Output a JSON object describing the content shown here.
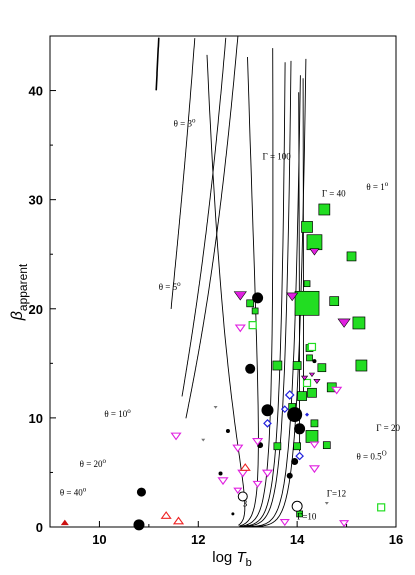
{
  "chart_data": {
    "type": "scatter",
    "x_axis": {
      "label_main": "log",
      "label_var": "T",
      "label_sub": "b",
      "range": [
        9,
        16
      ],
      "ticks": [
        "10",
        "12",
        "14",
        "16"
      ]
    },
    "y_axis": {
      "label_var": "β",
      "label_sub": "apparent",
      "range": [
        0,
        45
      ],
      "ticks": [
        "0",
        "10",
        "20",
        "30",
        "40"
      ]
    },
    "curve_labels": [
      {
        "text": "Γ = 100",
        "x": 13.3,
        "y": 33.7
      },
      {
        "text": "Γ = 40",
        "x": 14.5,
        "y": 30.3
      },
      {
        "text": "Γ = 20",
        "x": 15.6,
        "y": 8.8
      },
      {
        "text": "Γ=12",
        "x": 14.6,
        "y": 2.8
      },
      {
        "text": "Γ=10",
        "x": 14.0,
        "y": 0.7
      },
      {
        "text": "θ = 3",
        "sup": "o",
        "x": 11.5,
        "y": 36.7
      },
      {
        "text": "θ = 1",
        "sup": "o",
        "x": 15.4,
        "y": 30.9
      },
      {
        "text": "θ = 5",
        "sup": "o",
        "x": 11.2,
        "y": 21.7
      },
      {
        "text": "θ = 10",
        "sup": "o",
        "x": 10.1,
        "y": 10.1
      },
      {
        "text": "θ = 20",
        "sup": "o",
        "x": 9.6,
        "y": 5.5
      },
      {
        "text": "θ = 40",
        "sup": "o",
        "x": 9.2,
        "y": 2.9
      },
      {
        "text": "θ = 0.5",
        "sup": "O",
        "x": 15.2,
        "y": 6.2
      },
      {
        "text": "3",
        "x": 12.9,
        "y": 1.9
      }
    ],
    "series": [
      {
        "marker": "filled-square",
        "color": "#22dd22",
        "points": [
          [
            14.2,
            27.5,
            11
          ],
          [
            14.35,
            26.1,
            15
          ],
          [
            14.55,
            29.1,
            11
          ],
          [
            14.2,
            20.5,
            24
          ],
          [
            14.75,
            20.7,
            9
          ],
          [
            15.1,
            24.8,
            9
          ],
          [
            15.25,
            18.7,
            12
          ],
          [
            15.3,
            14.8,
            11
          ],
          [
            14.25,
            16.4,
            7
          ],
          [
            14.25,
            15.5,
            6
          ],
          [
            14.7,
            12.8,
            9
          ],
          [
            14.5,
            14.6,
            8
          ],
          [
            14.0,
            14.8,
            8
          ],
          [
            14.1,
            12.0,
            9
          ],
          [
            14.3,
            12.3,
            9
          ],
          [
            14.35,
            9.5,
            7
          ],
          [
            14.3,
            8.3,
            12
          ],
          [
            14.6,
            7.5,
            7
          ],
          [
            13.9,
            11.0,
            7
          ],
          [
            14.0,
            7.4,
            7
          ],
          [
            14.05,
            1.2,
            6
          ],
          [
            13.6,
            14.8,
            9
          ],
          [
            13.6,
            7.4,
            7
          ],
          [
            13.05,
            20.5,
            7
          ],
          [
            13.15,
            19.8,
            6
          ],
          [
            14.2,
            22.3,
            6
          ]
        ]
      },
      {
        "marker": "open-square",
        "color": "#22dd22",
        "points": [
          [
            13.1,
            18.5,
            7
          ],
          [
            14.3,
            16.5,
            7
          ],
          [
            14.2,
            13.2,
            7
          ],
          [
            15.7,
            1.8,
            7
          ]
        ]
      },
      {
        "marker": "filled-circle",
        "color": "#000000",
        "points": [
          [
            13.2,
            21.0,
            11
          ],
          [
            13.05,
            14.5,
            10
          ],
          [
            13.4,
            10.7,
            12
          ],
          [
            13.95,
            10.3,
            15
          ],
          [
            14.05,
            9.0,
            11
          ],
          [
            13.95,
            6.0,
            7
          ],
          [
            13.85,
            4.7,
            6
          ],
          [
            13.25,
            7.5,
            6
          ],
          [
            10.85,
            3.2,
            9
          ],
          [
            10.8,
            0.2,
            11
          ],
          [
            12.45,
            4.9,
            4
          ],
          [
            12.7,
            1.2,
            3
          ],
          [
            12.6,
            8.8,
            4
          ],
          [
            14.35,
            15.2,
            4
          ]
        ]
      },
      {
        "marker": "open-circle",
        "color": "#000000",
        "points": [
          [
            12.9,
            2.8,
            9
          ],
          [
            14.0,
            1.9,
            10
          ]
        ]
      },
      {
        "marker": "filled-tri-down",
        "color": "#e020e0",
        "points": [
          [
            12.85,
            21.3,
            12
          ],
          [
            14.35,
            25.3,
            9
          ],
          [
            13.9,
            21.2,
            11
          ],
          [
            14.95,
            18.8,
            12
          ],
          [
            14.4,
            13.4,
            6
          ],
          [
            14.15,
            13.7,
            6
          ],
          [
            14.3,
            14.0,
            5
          ]
        ]
      },
      {
        "marker": "open-tri-down",
        "color": "#e020e0",
        "points": [
          [
            12.85,
            18.3,
            9
          ],
          [
            13.2,
            7.9,
            9
          ],
          [
            12.8,
            7.3,
            9
          ],
          [
            12.5,
            4.3,
            9
          ],
          [
            11.55,
            8.4,
            9
          ],
          [
            12.9,
            5.0,
            9
          ],
          [
            13.2,
            4.0,
            8
          ],
          [
            13.4,
            5.0,
            9
          ],
          [
            13.75,
            0.5,
            8
          ],
          [
            14.35,
            5.4,
            9
          ],
          [
            14.35,
            7.6,
            8
          ],
          [
            14.8,
            12.6,
            9
          ],
          [
            14.95,
            0.4,
            8
          ],
          [
            12.8,
            3.4,
            7
          ]
        ]
      },
      {
        "marker": "open-diamond",
        "color": "#2222dd",
        "points": [
          [
            13.85,
            12.1,
            8
          ],
          [
            13.4,
            9.5,
            7
          ],
          [
            14.05,
            6.5,
            7
          ],
          [
            13.75,
            10.8,
            6
          ]
        ]
      },
      {
        "marker": "filled-diamond",
        "color": "#2222dd",
        "points": [
          [
            14.2,
            10.3,
            4
          ]
        ]
      },
      {
        "marker": "filled-tri-up",
        "color": "#cc1111",
        "points": [
          [
            9.3,
            0.35,
            8
          ]
        ]
      },
      {
        "marker": "open-tri-up",
        "color": "#ee2222",
        "points": [
          [
            11.35,
            1.0,
            9
          ],
          [
            11.6,
            0.5,
            9
          ],
          [
            12.95,
            5.4,
            9
          ]
        ]
      },
      {
        "marker": "small-tri-down",
        "color": "#777777",
        "points": [
          [
            12.35,
            11.0,
            4
          ],
          [
            12.1,
            8.0,
            4
          ],
          [
            14.6,
            2.2,
            4
          ]
        ]
      }
    ]
  }
}
